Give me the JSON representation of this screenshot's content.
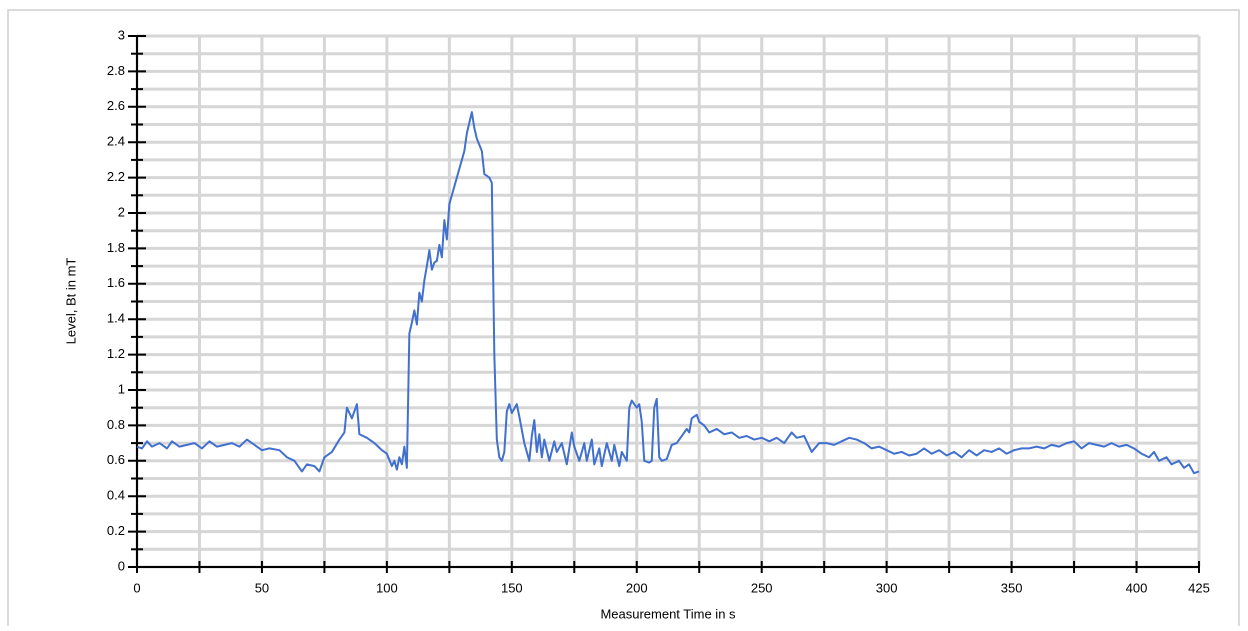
{
  "chart_data": {
    "type": "line",
    "xlabel": "Measurement Time in s",
    "ylabel": "Level, Bt in mT",
    "x": [
      0,
      2,
      4,
      6,
      9,
      12,
      14,
      17,
      20,
      23,
      26,
      29,
      32,
      35,
      38,
      41,
      44,
      47,
      50,
      53,
      57,
      60,
      63,
      66,
      68,
      71,
      73,
      75,
      78,
      81,
      83,
      84,
      86,
      88,
      89,
      92,
      95,
      98,
      100,
      102,
      103,
      104,
      105,
      106,
      107,
      108,
      109,
      110,
      111,
      112,
      113,
      114,
      115,
      116,
      117,
      118,
      119,
      120,
      121,
      122,
      123,
      124,
      125,
      127,
      129,
      131,
      132,
      134,
      135,
      136,
      138,
      139,
      141,
      142,
      143,
      144,
      145,
      146,
      147,
      148,
      149,
      150,
      152,
      153,
      155,
      157,
      158,
      159,
      160,
      161,
      162,
      163,
      165,
      167,
      168,
      170,
      172,
      174,
      175,
      177,
      179,
      180,
      182,
      183,
      185,
      186,
      188,
      190,
      191,
      193,
      194,
      196,
      197,
      198,
      200,
      201,
      202,
      203,
      205,
      206,
      207,
      208,
      209,
      210,
      212,
      214,
      216,
      218,
      220,
      221,
      222,
      224,
      225,
      227,
      229,
      232,
      235,
      238,
      241,
      244,
      247,
      250,
      253,
      256,
      259,
      262,
      264,
      267,
      270,
      273,
      276,
      279,
      282,
      285,
      288,
      291,
      294,
      297,
      300,
      303,
      306,
      309,
      312,
      315,
      318,
      321,
      324,
      327,
      330,
      333,
      336,
      339,
      342,
      345,
      348,
      351,
      354,
      357,
      360,
      363,
      366,
      369,
      372,
      375,
      378,
      381,
      384,
      387,
      390,
      393,
      396,
      399,
      402,
      405,
      407,
      409,
      412,
      414,
      417,
      419,
      421,
      423,
      425
    ],
    "series": [
      {
        "color": "#4170cf",
        "values": [
          0.68,
          0.67,
          0.71,
          0.68,
          0.7,
          0.67,
          0.71,
          0.68,
          0.69,
          0.7,
          0.67,
          0.71,
          0.68,
          0.69,
          0.7,
          0.68,
          0.72,
          0.69,
          0.66,
          0.67,
          0.66,
          0.62,
          0.6,
          0.54,
          0.58,
          0.57,
          0.54,
          0.62,
          0.65,
          0.72,
          0.76,
          0.9,
          0.84,
          0.92,
          0.75,
          0.73,
          0.7,
          0.66,
          0.64,
          0.57,
          0.6,
          0.55,
          0.62,
          0.58,
          0.68,
          0.56,
          1.32,
          1.38,
          1.45,
          1.37,
          1.55,
          1.5,
          1.62,
          1.7,
          1.79,
          1.68,
          1.72,
          1.73,
          1.82,
          1.75,
          1.96,
          1.85,
          2.05,
          2.15,
          2.25,
          2.35,
          2.45,
          2.57,
          2.48,
          2.42,
          2.35,
          2.22,
          2.2,
          2.17,
          1.2,
          0.72,
          0.62,
          0.6,
          0.65,
          0.88,
          0.92,
          0.87,
          0.92,
          0.85,
          0.7,
          0.6,
          0.74,
          0.83,
          0.65,
          0.75,
          0.62,
          0.72,
          0.6,
          0.71,
          0.65,
          0.7,
          0.58,
          0.76,
          0.68,
          0.6,
          0.7,
          0.6,
          0.72,
          0.58,
          0.67,
          0.57,
          0.7,
          0.6,
          0.69,
          0.57,
          0.65,
          0.6,
          0.9,
          0.94,
          0.9,
          0.92,
          0.82,
          0.6,
          0.59,
          0.6,
          0.9,
          0.95,
          0.62,
          0.6,
          0.61,
          0.69,
          0.7,
          0.74,
          0.78,
          0.76,
          0.84,
          0.86,
          0.82,
          0.8,
          0.76,
          0.78,
          0.75,
          0.76,
          0.73,
          0.74,
          0.72,
          0.73,
          0.71,
          0.73,
          0.7,
          0.76,
          0.73,
          0.74,
          0.65,
          0.7,
          0.7,
          0.69,
          0.71,
          0.73,
          0.72,
          0.7,
          0.67,
          0.68,
          0.66,
          0.64,
          0.65,
          0.63,
          0.64,
          0.67,
          0.64,
          0.66,
          0.63,
          0.65,
          0.62,
          0.66,
          0.63,
          0.66,
          0.65,
          0.67,
          0.64,
          0.66,
          0.67,
          0.67,
          0.68,
          0.67,
          0.69,
          0.68,
          0.7,
          0.71,
          0.67,
          0.7,
          0.69,
          0.68,
          0.7,
          0.68,
          0.69,
          0.67,
          0.64,
          0.62,
          0.65,
          0.6,
          0.62,
          0.58,
          0.6,
          0.56,
          0.58,
          0.53,
          0.54
        ]
      }
    ],
    "xlim": [
      0,
      425
    ],
    "xticks": [
      0,
      50,
      100,
      150,
      200,
      250,
      300,
      350,
      400,
      425
    ],
    "xminor_ticks": [
      25,
      75,
      125,
      175,
      225,
      275,
      325,
      375
    ],
    "ylim": [
      0,
      3
    ],
    "yticks": [
      0,
      0.2,
      0.4,
      0.6,
      0.8,
      1,
      1.2,
      1.4,
      1.6,
      1.8,
      2,
      2.2,
      2.4,
      2.6,
      2.8,
      3
    ],
    "yminor_ticks": [
      0.1,
      0.3,
      0.5,
      0.7,
      0.9,
      1.1,
      1.3,
      1.5,
      1.7,
      1.9,
      2.1,
      2.3,
      2.5,
      2.7,
      2.9
    ],
    "grid": true
  }
}
